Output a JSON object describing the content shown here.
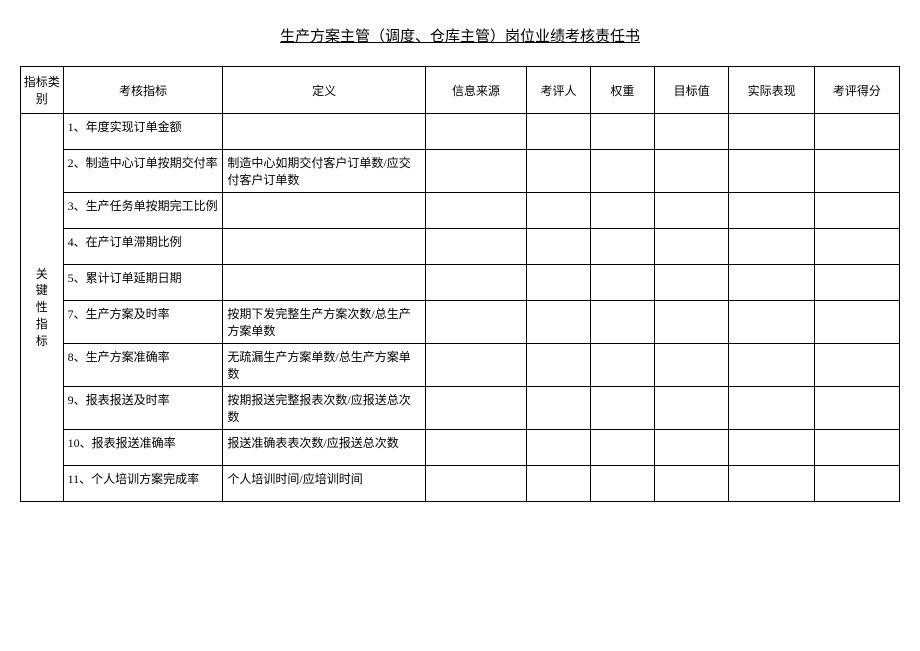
{
  "title": "生产方案主管（调度、仓库主管）岗位业绩考核责任书",
  "table": {
    "headers": {
      "category": "指标类别",
      "indicator": "考核指标",
      "definition": "定义",
      "source": "信息来源",
      "evaluator": "考评人",
      "weight": "权重",
      "target": "目标值",
      "performance": "实际表现",
      "score": "考评得分"
    },
    "category_label": "关键性指标",
    "rows": [
      {
        "indicator": "1、年度实现订单金额",
        "definition": ""
      },
      {
        "indicator": "2、制造中心订单按期交付率",
        "definition": "制造中心如期交付客户订单数/应交付客户订单数"
      },
      {
        "indicator": "3、生产任务单按期完工比例",
        "definition": ""
      },
      {
        "indicator": "4、在产订单滞期比例",
        "definition": ""
      },
      {
        "indicator": "5、累计订单延期日期",
        "definition": ""
      },
      {
        "indicator": "7、生产方案及时率",
        "definition": "按期下发完整生产方案次数/总生产方案单数"
      },
      {
        "indicator": "8、生产方案准确率",
        "definition": "无疏漏生产方案单数/总生产方案单数"
      },
      {
        "indicator": "9、报表报送及时率",
        "definition": "按期报送完整报表次数/应报送总次数"
      },
      {
        "indicator": "10、报表报送准确率",
        "definition": "报送准确表表次数/应报送总次数"
      },
      {
        "indicator": "11、个人培训方案完成率",
        "definition": "个人培训时间/应培训时间"
      }
    ]
  }
}
